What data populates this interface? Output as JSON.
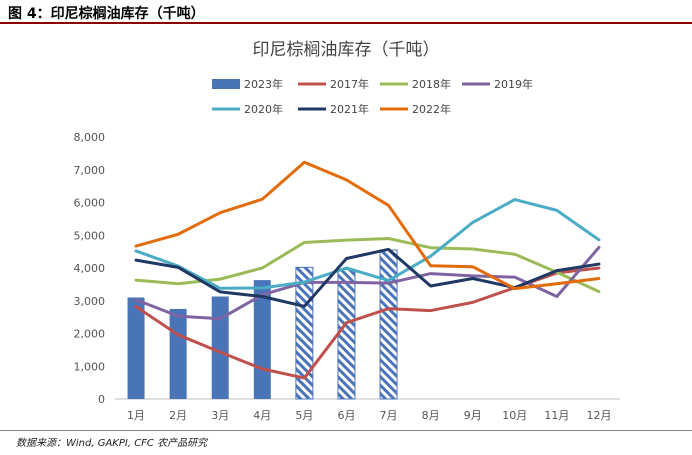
{
  "figure_title": "图 4：印尼棕榈油库存（千吨）",
  "source": "数据来源：Wind, GAKPI, CFC 农产品研究",
  "colors": {
    "bar": "#4a74b8",
    "hatch": "#4a74b8",
    "axis_text": "#555555",
    "grid": "#dddddd"
  },
  "chart_data": {
    "type": "bar+line",
    "title": "印尼棕榈油库存（千吨）",
    "categories": [
      "1月",
      "2月",
      "3月",
      "4月",
      "5月",
      "6月",
      "7月",
      "8月",
      "9月",
      "10月",
      "11月",
      "12月"
    ],
    "ylim": [
      0,
      8000
    ],
    "yticks": [
      "0",
      "1,000",
      "2,000",
      "3,000",
      "4,000",
      "5,000",
      "6,000",
      "7,000",
      "8,000"
    ],
    "grid": false,
    "legend_position": "top",
    "bar_series": {
      "name": "2023年",
      "values": [
        3100,
        2750,
        3130,
        3630,
        4020,
        3950,
        4550,
        null,
        null,
        null,
        null,
        null
      ],
      "hatched_from_index": 4
    },
    "line_series": [
      {
        "name": "2017年",
        "color": "#c0504d",
        "values": [
          2820,
          1960,
          1430,
          920,
          640,
          2330,
          2760,
          2700,
          2950,
          3400,
          3850,
          4000
        ]
      },
      {
        "name": "2018年",
        "color": "#9bbb59",
        "values": [
          3630,
          3520,
          3660,
          4000,
          4780,
          4850,
          4900,
          4620,
          4580,
          4420,
          3870,
          3280
        ]
      },
      {
        "name": "2019年",
        "color": "#8064a2",
        "values": [
          3030,
          2530,
          2450,
          3180,
          3560,
          3560,
          3540,
          3830,
          3760,
          3720,
          3130,
          4630
        ]
      },
      {
        "name": "2020年",
        "color": "#4bacc6",
        "values": [
          4520,
          4060,
          3380,
          3390,
          3570,
          4000,
          3620,
          4360,
          5390,
          6090,
          5760,
          4860
        ]
      },
      {
        "name": "2021年",
        "color": "#1f3864",
        "values": [
          4240,
          4020,
          3270,
          3130,
          2830,
          4290,
          4570,
          3450,
          3680,
          3400,
          3920,
          4120
        ]
      },
      {
        "name": "2022年",
        "color": "#e36c09",
        "values": [
          4670,
          5030,
          5690,
          6100,
          7230,
          6690,
          5910,
          4070,
          4040,
          3370,
          3520,
          3680
        ]
      }
    ]
  }
}
